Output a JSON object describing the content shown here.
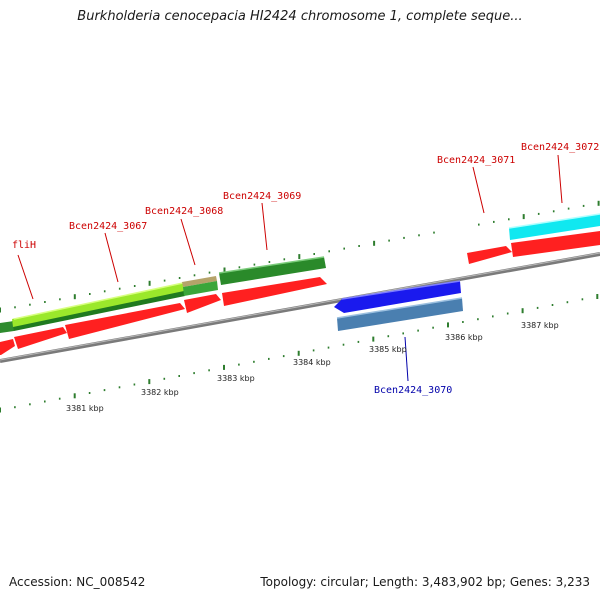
{
  "title": "Burkholderia cenocepacia HI2424 chromosome 1, complete seque...",
  "accession": "Accession: NC_008542",
  "summary": "Topology: circular; Length: 3,483,902 bp; Genes: 3,233",
  "colors": {
    "backbone": "#8a8a8a",
    "tick": "#2e7d2e",
    "label_forward": "#cc0000",
    "label_reverse": "#0000aa",
    "cds_forward": "#ff2020",
    "cds_reverse": "#1a1aee"
  },
  "scale_labels": [
    "3381 kbp",
    "3382 kbp",
    "3383 kbp",
    "3384 kbp",
    "3385 kbp",
    "3386 kbp",
    "3387 kbp"
  ],
  "gene_labels": [
    {
      "text": "fliH",
      "strand": "forward"
    },
    {
      "text": "Bcen2424_3067",
      "strand": "forward"
    },
    {
      "text": "Bcen2424_3068",
      "strand": "forward"
    },
    {
      "text": "Bcen2424_3069",
      "strand": "forward"
    },
    {
      "text": "Bcen2424_3071",
      "strand": "forward"
    },
    {
      "text": "Bcen2424_3072",
      "strand": "forward"
    },
    {
      "text": "Bcen2424_3070",
      "strand": "reverse"
    }
  ]
}
